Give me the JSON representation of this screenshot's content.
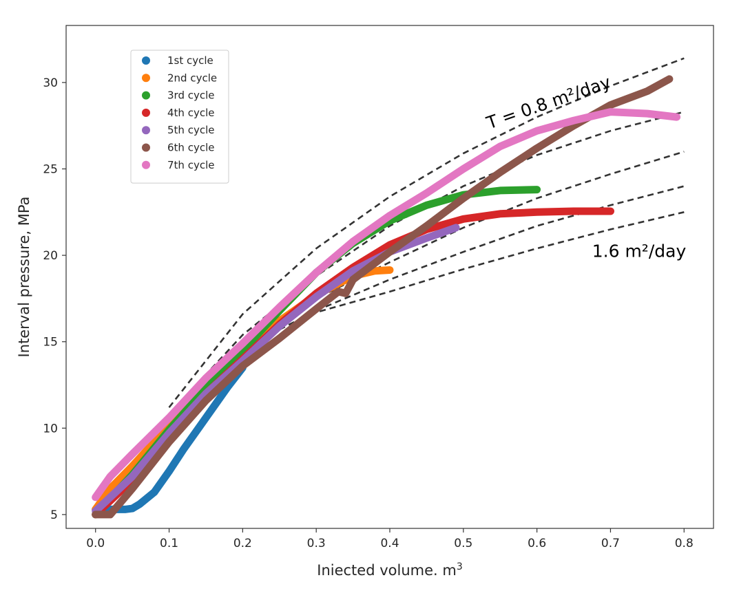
{
  "chart_data": {
    "type": "line",
    "title": "",
    "xlabel": "Iniected volume. m",
    "xlabel_sup": "3",
    "ylabel": "Interval pressure, MPa",
    "xlim": [
      -0.04,
      0.84
    ],
    "ylim": [
      4.2,
      33.3
    ],
    "xticks": [
      0.0,
      0.1,
      0.2,
      0.3,
      0.4,
      0.5,
      0.6,
      0.7,
      0.8
    ],
    "xtick_labels": [
      "0.0",
      "0.1",
      "0.2",
      "0.3",
      "0.4",
      "0.5",
      "0.6",
      "0.7",
      "0.8"
    ],
    "yticks": [
      5,
      10,
      15,
      20,
      25,
      30
    ],
    "ytick_labels": [
      "5",
      "10",
      "15",
      "20",
      "25",
      "30"
    ],
    "grid": false,
    "legend_position": "upper-left",
    "series": [
      {
        "name": "1st cycle",
        "color": "#1f77b4",
        "x": [
          0.0,
          0.02,
          0.04,
          0.05,
          0.06,
          0.08,
          0.1,
          0.12,
          0.14,
          0.16,
          0.18,
          0.2
        ],
        "y": [
          5.3,
          5.3,
          5.3,
          5.35,
          5.6,
          6.3,
          7.5,
          8.8,
          10.0,
          11.2,
          12.4,
          13.5
        ]
      },
      {
        "name": "2nd cycle",
        "color": "#ff7f0e",
        "x": [
          0.0,
          0.02,
          0.05,
          0.08,
          0.1,
          0.15,
          0.2,
          0.25,
          0.3,
          0.35,
          0.38,
          0.4
        ],
        "y": [
          5.3,
          6.5,
          7.8,
          9.2,
          10.3,
          12.6,
          14.5,
          16.2,
          17.7,
          18.8,
          19.1,
          19.15
        ]
      },
      {
        "name": "3rd cycle",
        "color": "#2ca02c",
        "x": [
          0.0,
          0.05,
          0.1,
          0.15,
          0.2,
          0.25,
          0.3,
          0.35,
          0.4,
          0.45,
          0.5,
          0.55,
          0.6
        ],
        "y": [
          5.0,
          7.3,
          9.9,
          12.3,
          14.5,
          16.8,
          19.0,
          20.7,
          22.0,
          22.9,
          23.5,
          23.75,
          23.8
        ]
      },
      {
        "name": "4th cycle",
        "color": "#d62728",
        "x": [
          0.0,
          0.05,
          0.1,
          0.15,
          0.2,
          0.25,
          0.3,
          0.35,
          0.4,
          0.45,
          0.5,
          0.55,
          0.6,
          0.65,
          0.7
        ],
        "y": [
          5.0,
          7.0,
          9.6,
          12.0,
          14.0,
          16.0,
          17.8,
          19.3,
          20.6,
          21.5,
          22.1,
          22.4,
          22.5,
          22.55,
          22.55
        ]
      },
      {
        "name": "5th cycle",
        "color": "#9467bd",
        "x": [
          0.0,
          0.05,
          0.1,
          0.15,
          0.2,
          0.25,
          0.3,
          0.35,
          0.4,
          0.45,
          0.49
        ],
        "y": [
          5.2,
          7.2,
          9.7,
          12.0,
          13.9,
          15.9,
          17.6,
          19.1,
          20.2,
          21.0,
          21.6
        ]
      },
      {
        "name": "6th cycle",
        "color": "#8c564b",
        "x": [
          0.0,
          0.02,
          0.05,
          0.1,
          0.15,
          0.2,
          0.25,
          0.3,
          0.33,
          0.34,
          0.35,
          0.4,
          0.45,
          0.5,
          0.55,
          0.6,
          0.65,
          0.7,
          0.75,
          0.78
        ],
        "y": [
          5.0,
          5.0,
          6.5,
          9.2,
          11.6,
          13.6,
          15.2,
          16.9,
          17.9,
          17.8,
          18.6,
          20.2,
          21.7,
          23.3,
          24.8,
          26.2,
          27.5,
          28.7,
          29.5,
          30.2
        ]
      },
      {
        "name": "7th cycle",
        "color": "#e377c2",
        "x": [
          0.0,
          0.02,
          0.05,
          0.1,
          0.15,
          0.2,
          0.25,
          0.3,
          0.35,
          0.4,
          0.45,
          0.5,
          0.55,
          0.6,
          0.65,
          0.7,
          0.75,
          0.79
        ],
        "y": [
          6.0,
          7.2,
          8.5,
          10.6,
          12.9,
          14.9,
          17.0,
          19.0,
          20.8,
          22.3,
          23.6,
          25.0,
          26.3,
          27.2,
          27.8,
          28.3,
          28.2,
          28.0
        ]
      }
    ],
    "reference_curves": [
      {
        "x": [
          0.1,
          0.2,
          0.3,
          0.4,
          0.5,
          0.6,
          0.7,
          0.8
        ],
        "y": [
          11.2,
          16.6,
          20.4,
          23.4,
          25.9,
          28.0,
          29.8,
          31.4
        ]
      },
      {
        "x": [
          0.1,
          0.2,
          0.3,
          0.4,
          0.5,
          0.6,
          0.7,
          0.8
        ],
        "y": [
          10.8,
          15.4,
          18.8,
          21.7,
          24.0,
          25.8,
          27.2,
          28.3
        ]
      },
      {
        "x": [
          0.2,
          0.3,
          0.4,
          0.5,
          0.6,
          0.7,
          0.8
        ],
        "y": [
          14.6,
          17.5,
          19.6,
          21.6,
          23.3,
          24.7,
          26.0
        ]
      },
      {
        "x": [
          0.25,
          0.3,
          0.4,
          0.5,
          0.6,
          0.7,
          0.8
        ],
        "y": [
          15.7,
          16.8,
          18.6,
          20.2,
          21.7,
          22.9,
          24.0
        ]
      },
      {
        "x": [
          0.28,
          0.3,
          0.4,
          0.5,
          0.6,
          0.7,
          0.8
        ],
        "y": [
          16.2,
          16.7,
          17.9,
          19.2,
          20.4,
          21.5,
          22.5
        ]
      }
    ],
    "annotations": [
      {
        "text": "T = 0.8 m²/day",
        "x": 0.535,
        "y": 27.3,
        "rotation": -19
      },
      {
        "text": "1.6 m²/day",
        "x": 0.675,
        "y": 19.9,
        "rotation": 0
      }
    ]
  }
}
